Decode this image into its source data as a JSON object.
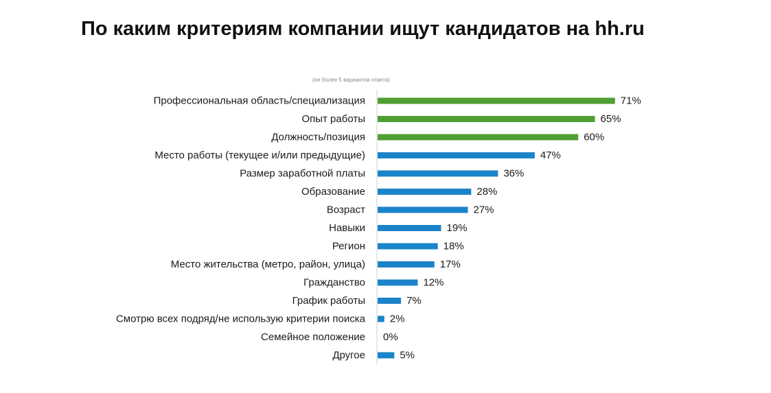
{
  "chart_data": {
    "type": "bar",
    "orientation": "horizontal",
    "title": "По каким критериям компании ищут кандидатов на hh.ru",
    "subtitle": "(не более 5 вариантов ответа)",
    "value_suffix": "%",
    "categories": [
      "Профессиональная область/специализация",
      "Опыт работы",
      "Должность/позиция",
      "Место работы (текущее и/или предыдущие)",
      "Размер заработной платы",
      "Образование",
      "Возраст",
      "Навыки",
      "Регион",
      "Место жительства (метро, район, улица)",
      "Гражданство",
      "График работы",
      "Смотрю всех подряд/не использую критерии поиска",
      "Семейное положение",
      "Другое"
    ],
    "values": [
      71,
      65,
      60,
      47,
      36,
      28,
      27,
      19,
      18,
      17,
      12,
      7,
      2,
      0,
      5
    ],
    "value_labels": [
      "71%",
      "65%",
      "60%",
      "47%",
      "36%",
      "28%",
      "27%",
      "19%",
      "18%",
      "17%",
      "12%",
      "7%",
      "2%",
      "0%",
      "5%"
    ],
    "highlight_count": 3,
    "colors": {
      "highlight": "#4f9f32",
      "default": "#1a83c9",
      "axis": "#d0d0d0"
    },
    "xlim": [
      0,
      100
    ],
    "grid": false,
    "legend": "none"
  }
}
